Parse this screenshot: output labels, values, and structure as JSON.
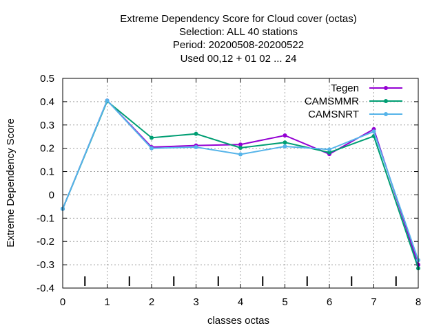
{
  "chart_data": {
    "type": "line",
    "title_lines": [
      "Extreme Dependency Score  for Cloud cover (octas)",
      "Selection: ALL     40 stations",
      "Period: 20200508-20200522",
      "Used  00,12  + 01 02 ... 24"
    ],
    "xlabel": "classes octas",
    "ylabel": "Extreme Dependency Score",
    "xlim": [
      0,
      8
    ],
    "ylim": [
      -0.4,
      0.5
    ],
    "x_ticks": [
      "0",
      "1",
      "2",
      "3",
      "4",
      "5",
      "6",
      "7",
      "8"
    ],
    "y_ticks": [
      "-0.4",
      "-0.3",
      "-0.2",
      "-0.1",
      "0",
      "0.1",
      "0.2",
      "0.3",
      "0.4",
      "0.5"
    ],
    "grid": true,
    "legend_position": "top-right",
    "x": [
      0,
      1,
      2,
      3,
      4,
      5,
      6,
      7,
      8
    ],
    "series": [
      {
        "name": "Tegen",
        "color": "#9400d3",
        "values": [
          -0.06,
          0.405,
          0.205,
          0.212,
          0.216,
          0.255,
          0.175,
          0.282,
          -0.3
        ]
      },
      {
        "name": "CAMSMMR",
        "color": "#009e73",
        "values": [
          -0.06,
          0.402,
          0.245,
          0.262,
          0.202,
          0.225,
          0.182,
          0.252,
          -0.315
        ]
      },
      {
        "name": "CAMSNRT",
        "color": "#56b4e9",
        "values": [
          -0.06,
          0.405,
          0.2,
          0.205,
          0.174,
          0.208,
          0.195,
          0.272,
          -0.28
        ]
      }
    ]
  }
}
